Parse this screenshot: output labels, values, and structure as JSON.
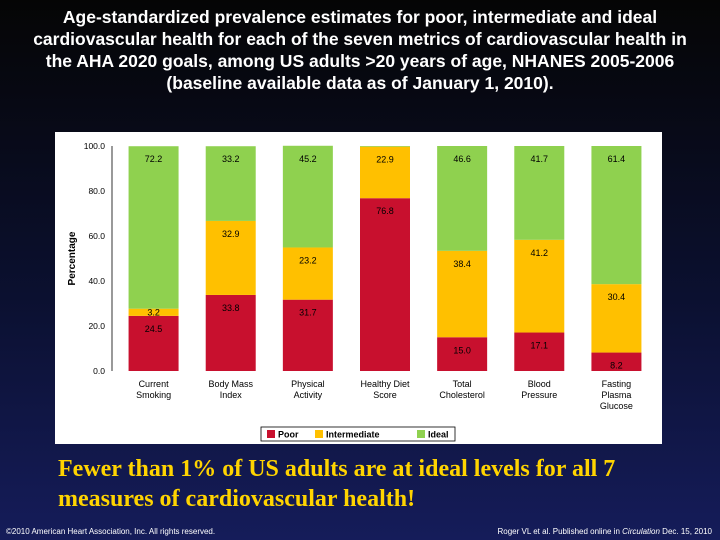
{
  "title": "Age-standardized prevalence estimates for poor, intermediate and ideal cardiovascular health for each of the seven metrics of cardiovascular health in the AHA 2020 goals, among US adults >20 years of age, NHANES 2005-2006 (baseline available data as of January 1, 2010).",
  "tagline": "Fewer than 1% of US adults are at ideal levels for all 7 measures of cardiovascular health!",
  "footer": {
    "copyright": "©2010 American Heart Association, Inc. All rights reserved.",
    "citation_prefix": "Roger VL et al. Published online in ",
    "citation_journal": "Circulation",
    "citation_suffix": " Dec. 15, 2010"
  },
  "colors": {
    "poor": "#c8102e",
    "intermediate": "#ffc000",
    "ideal": "#8fd14f"
  },
  "chart_data": {
    "type": "bar",
    "stacked": true,
    "ylabel": "Percentage",
    "ylim": [
      0,
      100
    ],
    "yticks": [
      "0.0",
      "20.0",
      "40.0",
      "60.0",
      "80.0",
      "100.0"
    ],
    "categories": [
      [
        "Current",
        "Smoking"
      ],
      [
        "Body Mass",
        "Index"
      ],
      [
        "Physical",
        "Activity"
      ],
      [
        "Healthy Diet",
        "Score"
      ],
      [
        "Total",
        "Cholesterol"
      ],
      [
        "Blood",
        "Pressure"
      ],
      [
        "Fasting",
        "Plasma",
        "Glucose"
      ]
    ],
    "series": [
      {
        "name": "Poor",
        "color": "#c8102e",
        "values": [
          24.5,
          33.8,
          31.7,
          76.8,
          15.0,
          17.1,
          8.2
        ]
      },
      {
        "name": "Intermediate",
        "color": "#ffc000",
        "values": [
          3.2,
          32.9,
          23.2,
          22.9,
          38.4,
          41.2,
          30.4
        ]
      },
      {
        "name": "Ideal",
        "color": "#8fd14f",
        "values": [
          72.2,
          33.2,
          45.2,
          0.3,
          46.6,
          41.7,
          61.4
        ]
      }
    ],
    "labels": [
      [
        "24.5",
        "3.2",
        "72.2"
      ],
      [
        "33.8",
        "32.9",
        "33.2"
      ],
      [
        "31.7",
        "23.2",
        "45.2"
      ],
      [
        "76.8",
        "22.9",
        ""
      ],
      [
        "15.0",
        "38.4",
        "46.6"
      ],
      [
        "17.1",
        "41.2",
        "41.7"
      ],
      [
        "8.2",
        "30.4",
        "61.4"
      ]
    ],
    "legend": [
      "Poor",
      "Intermediate",
      "Ideal"
    ],
    "legend_position": "bottom"
  }
}
